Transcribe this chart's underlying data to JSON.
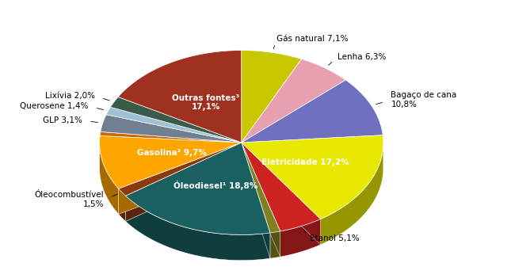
{
  "slices": [
    {
      "label": "Gás natural 7,1%",
      "value": 7.1,
      "color": "#C8C800",
      "label_side": "out"
    },
    {
      "label": "Lenha 6,3%",
      "value": 6.3,
      "color": "#E8A0B0",
      "label_side": "out"
    },
    {
      "label": "Bagaço de cana\n10,8%",
      "value": 10.8,
      "color": "#7070C0",
      "label_side": "out"
    },
    {
      "label": "Eletricidade 17,2%",
      "value": 17.2,
      "color": "#E8E800",
      "label_side": "in"
    },
    {
      "label": "Etanol 5,1%",
      "value": 5.1,
      "color": "#CC2222",
      "label_side": "out"
    },
    {
      "label": "",
      "value": 1.2,
      "color": "#808020",
      "label_side": "out"
    },
    {
      "label": "Óleodiesel¹ 18,8%",
      "value": 18.8,
      "color": "#1A6060",
      "label_side": "in"
    },
    {
      "label": "Óleocombustível\n1,5%",
      "value": 1.5,
      "color": "#8B3A10",
      "label_side": "out"
    },
    {
      "label": "Gasolina² 9,7%",
      "value": 9.7,
      "color": "#FFA500",
      "label_side": "in"
    },
    {
      "label": "",
      "value": 0.7,
      "color": "#CC6600",
      "label_side": "out"
    },
    {
      "label": "GLP 3,1%",
      "value": 3.1,
      "color": "#708090",
      "label_side": "out"
    },
    {
      "label": "Querosene 1,4%",
      "value": 1.4,
      "color": "#A0C0D8",
      "label_side": "out"
    },
    {
      "label": "Lixívia 2,0%",
      "value": 2.0,
      "color": "#3A5A4A",
      "label_side": "out"
    },
    {
      "label": "Outras fontes³\n17,1%",
      "value": 17.1,
      "color": "#A03020",
      "label_side": "in"
    }
  ],
  "figsize": [
    6.45,
    3.51
  ],
  "dpi": 100,
  "start_angle": 90,
  "bg_color": "#FFFFFF"
}
